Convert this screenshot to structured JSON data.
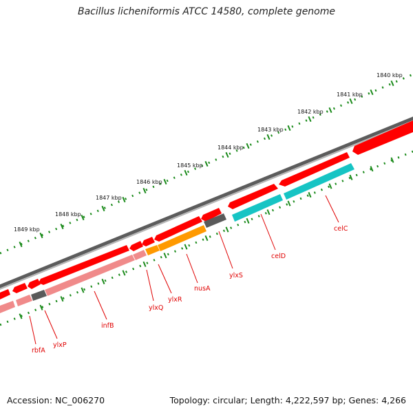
{
  "title": "Bacillus licheniformis ATCC 14580, complete genome",
  "footer": {
    "accession": "Accession: NC_006270",
    "summary": "Topology: circular; Length: 4,222,597 bp; Genes: 4,266"
  },
  "colors": {
    "backbone": "#7f7f7f",
    "tick": "#1a8a1a",
    "gene_label": "#e00000",
    "cds_forward": "#ff0000",
    "cds_reverse_light": "#f08a8a",
    "cds_gray": "#5a5a5a",
    "cds_orange": "#ff9900",
    "cds_cyan": "#16c4c4"
  },
  "scale_labels": [
    "1840 kbp",
    "1841 kbp",
    "1842 kbp",
    "1843 kbp",
    "1844 kbp",
    "1845 kbp",
    "1846 kbp",
    "1847 kbp",
    "1848 kbp",
    "1849 kbp"
  ],
  "gene_labels": [
    "celC",
    "celD",
    "ylxS",
    "nusA",
    "ylxR",
    "ylxQ",
    "infB",
    "ylxP",
    "rbfA"
  ]
}
